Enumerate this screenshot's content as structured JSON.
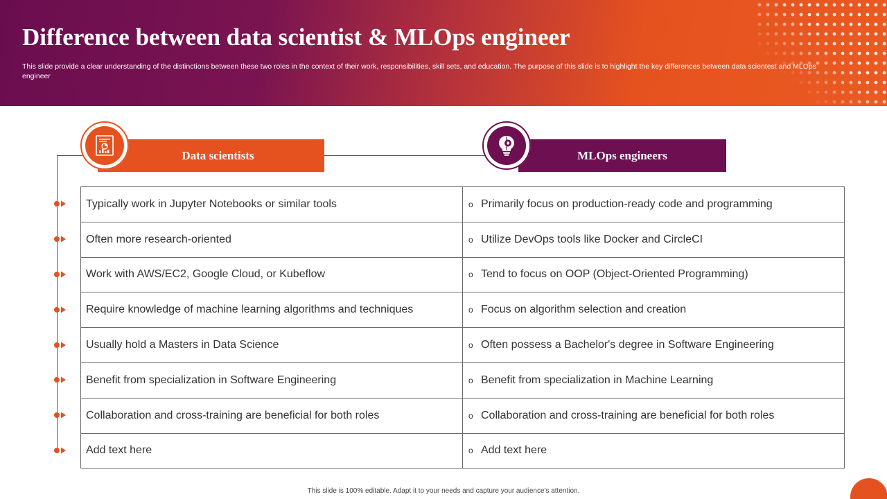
{
  "header": {
    "title": "Difference between data scientist & MLOps engineer",
    "subtitle": "This slide provide a clear understanding of the distinctions between these two roles in the context of their work, responsibilities, skill sets, and education. The purpose of this slide is to highlight the key differences between data scientest and MLOps engineer"
  },
  "columns": {
    "left": {
      "label": "Data scientists",
      "icon": "report-chart-icon",
      "color": "#e6521f"
    },
    "right": {
      "label": "MLOps engineers",
      "icon": "bulb-gear-icon",
      "color": "#6e0f52"
    }
  },
  "bullet": "o",
  "rows": [
    {
      "left": "Typically  work in Jupyter Notebooks or similar tools",
      "right": "Primarily focus on production-ready code and programming"
    },
    {
      "left": "Often more research-oriented",
      "right": "Utilize DevOps tools like Docker and CircleCI"
    },
    {
      "left": "Work with AWS/EC2, Google Cloud, or Kubeflow",
      "right": "Tend to focus on OOP (Object-Oriented Programming)"
    },
    {
      "left": "Require knowledge of machine learning algorithms and techniques",
      "right": "Focus on algorithm selection and creation"
    },
    {
      "left": "Usually  hold a Masters in Data Science",
      "right": "Often possess a Bachelor's degree in Software Engineering"
    },
    {
      "left": "Benefit from specialization in Software Engineering",
      "right": "Benefit from specialization in Machine Learning"
    },
    {
      "left": "Collaboration and cross-training are beneficial for both roles",
      "right": "Collaboration and cross-training are beneficial for both roles"
    },
    {
      "left": "Add text here",
      "right": "Add text here"
    }
  ],
  "footer": "This slide is 100% editable. Adapt it to your needs and capture your audience's attention."
}
